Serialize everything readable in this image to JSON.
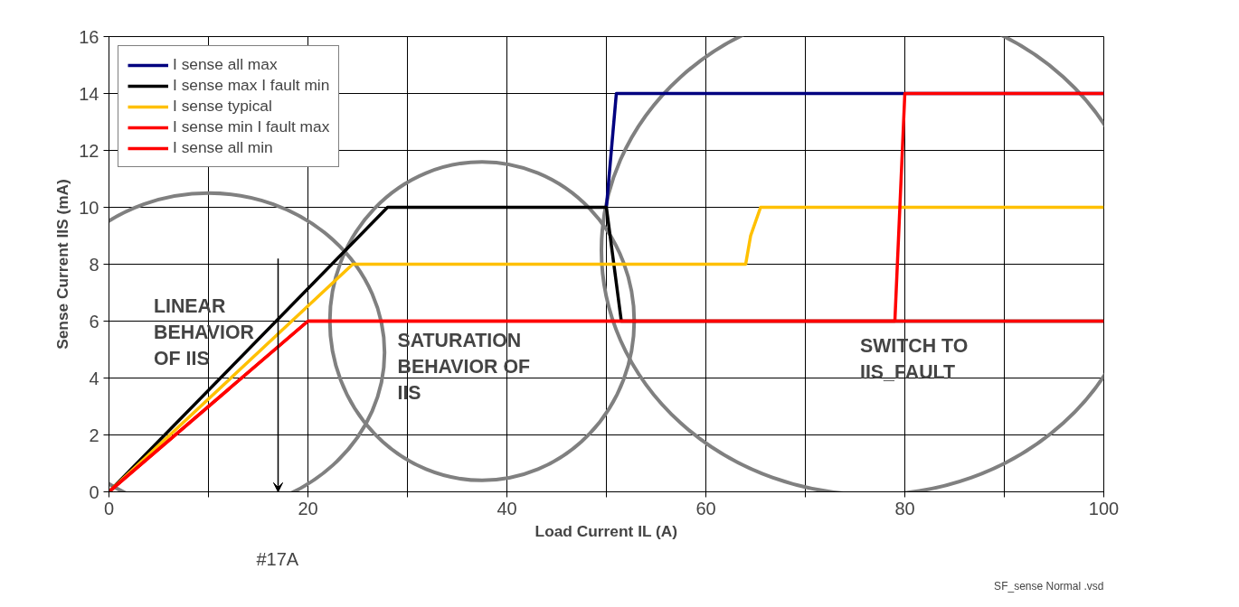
{
  "chart_data": {
    "type": "line",
    "xlabel": "Load Current IL (A)",
    "ylabel": "Sense Current IIS (mA)",
    "xlim": [
      0,
      100
    ],
    "ylim": [
      0,
      16
    ],
    "xticks": [
      0,
      {
        "value": 10,
        "label": null
      },
      20,
      {
        "value": 30,
        "label": null
      },
      40,
      {
        "value": 50,
        "label": null
      },
      60,
      {
        "value": 70,
        "label": null
      },
      80,
      {
        "value": 90,
        "label": null
      },
      100
    ],
    "yticks": [
      0,
      2,
      4,
      6,
      8,
      10,
      12,
      14,
      16
    ],
    "grid": true,
    "legend": "top left",
    "marker": "none",
    "line_style": "solid",
    "series": [
      {
        "name": "I sense all max",
        "color": "#000080",
        "x": [
          50,
          51,
          100
        ],
        "values": [
          10,
          14,
          14
        ]
      },
      {
        "name": "I sense max I fault min",
        "color": "#000000",
        "x": [
          0,
          28,
          50,
          51.5,
          100
        ],
        "values": [
          0,
          10,
          10,
          6,
          6
        ]
      },
      {
        "name": "I sense typical",
        "color": "#ffc000",
        "x": [
          0,
          24.5,
          64,
          64.5,
          65.5,
          100
        ],
        "values": [
          0,
          8,
          8,
          9,
          10,
          10
        ]
      },
      {
        "name": "I sense min I fault max",
        "color": "#ff0000",
        "x": [
          0,
          20,
          79,
          80,
          100
        ],
        "values": [
          0,
          6,
          6,
          14,
          14
        ]
      },
      {
        "name": "I sense all min",
        "color": "#ff0000",
        "x": [
          0,
          20,
          100
        ],
        "values": [
          0,
          6,
          6
        ]
      }
    ],
    "annotations": [
      "LINEAR\nBEHAVIOR\nOF IIS",
      "SATURATION\nBEHAVIOR OF\nIIS",
      "SWITCH TO\nIIS_FAULT",
      "#17A",
      "SF_sense Normal .vsd"
    ]
  }
}
